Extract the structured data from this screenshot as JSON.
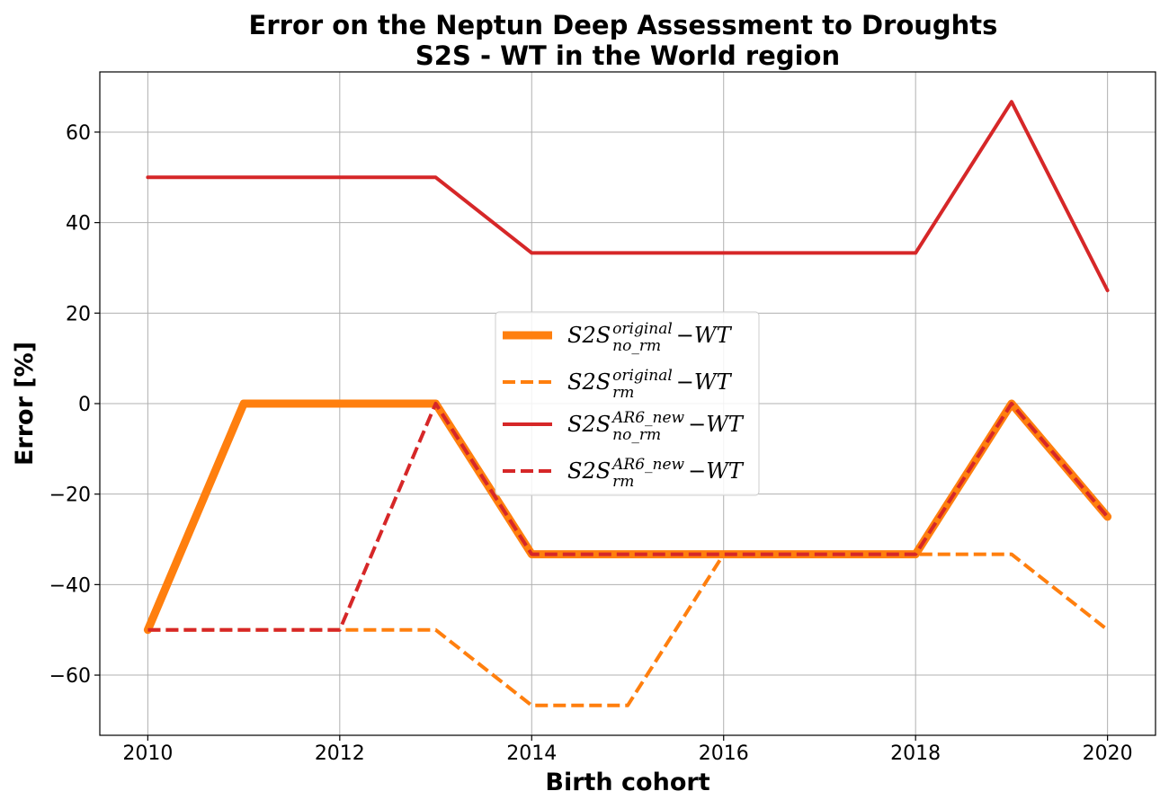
{
  "chart_data": {
    "type": "line",
    "title_line1": "Error on the Neptun Deep Assessment to Droughts",
    "title_line2": "S2S - WT in the World region",
    "xlabel": "Birth cohort",
    "ylabel": "Error [%]",
    "xlim": [
      2009.5,
      2020.5
    ],
    "ylim": [
      -73.3,
      73.3
    ],
    "xticks": [
      2010,
      2012,
      2014,
      2016,
      2018,
      2020
    ],
    "yticks": [
      -60,
      -40,
      -20,
      0,
      20,
      40,
      60
    ],
    "ytick_labels": [
      "−60",
      "−40",
      "−20",
      "0",
      "20",
      "40",
      "60"
    ],
    "grid": true,
    "legend_position": "center",
    "x": [
      2010,
      2011,
      2012,
      2013,
      2014,
      2015,
      2016,
      2017,
      2018,
      2019,
      2020
    ],
    "series": [
      {
        "name": "S2S^{original}_{no_rm} − WT",
        "base": "S2S",
        "sup": "original",
        "sub": "no_rm",
        "suffix": "−WT",
        "color": "#ff7f0e",
        "style": "solid",
        "width": 9,
        "values": [
          -50,
          0,
          0,
          0,
          -33.3,
          -33.3,
          -33.3,
          -33.3,
          -33.3,
          0,
          -25
        ]
      },
      {
        "name": "S2S^{original}_{rm} − WT",
        "base": "S2S",
        "sup": "original",
        "sub": "rm",
        "suffix": "−WT",
        "color": "#ff7f0e",
        "style": "dashed",
        "width": 4,
        "values": [
          -50,
          -50,
          -50,
          -50,
          -66.7,
          -66.7,
          -33.3,
          -33.3,
          -33.3,
          -33.3,
          -50
        ]
      },
      {
        "name": "S2S^{AR6_new}_{no_rm} − WT",
        "base": "S2S",
        "sup": "AR6_new",
        "sub": "no_rm",
        "suffix": "−WT",
        "color": "#d62728",
        "style": "solid",
        "width": 4,
        "values": [
          50,
          50,
          50,
          50,
          33.3,
          33.3,
          33.3,
          33.3,
          33.3,
          66.7,
          25
        ]
      },
      {
        "name": "S2S^{AR6_new}_{rm} − WT",
        "base": "S2S",
        "sup": "AR6_new",
        "sub": "rm",
        "suffix": "−WT",
        "color": "#d62728",
        "style": "dashed",
        "width": 4,
        "values": [
          -50,
          -50,
          -50,
          0,
          -33.3,
          -33.3,
          -33.3,
          -33.3,
          -33.3,
          0,
          -25
        ]
      }
    ]
  }
}
